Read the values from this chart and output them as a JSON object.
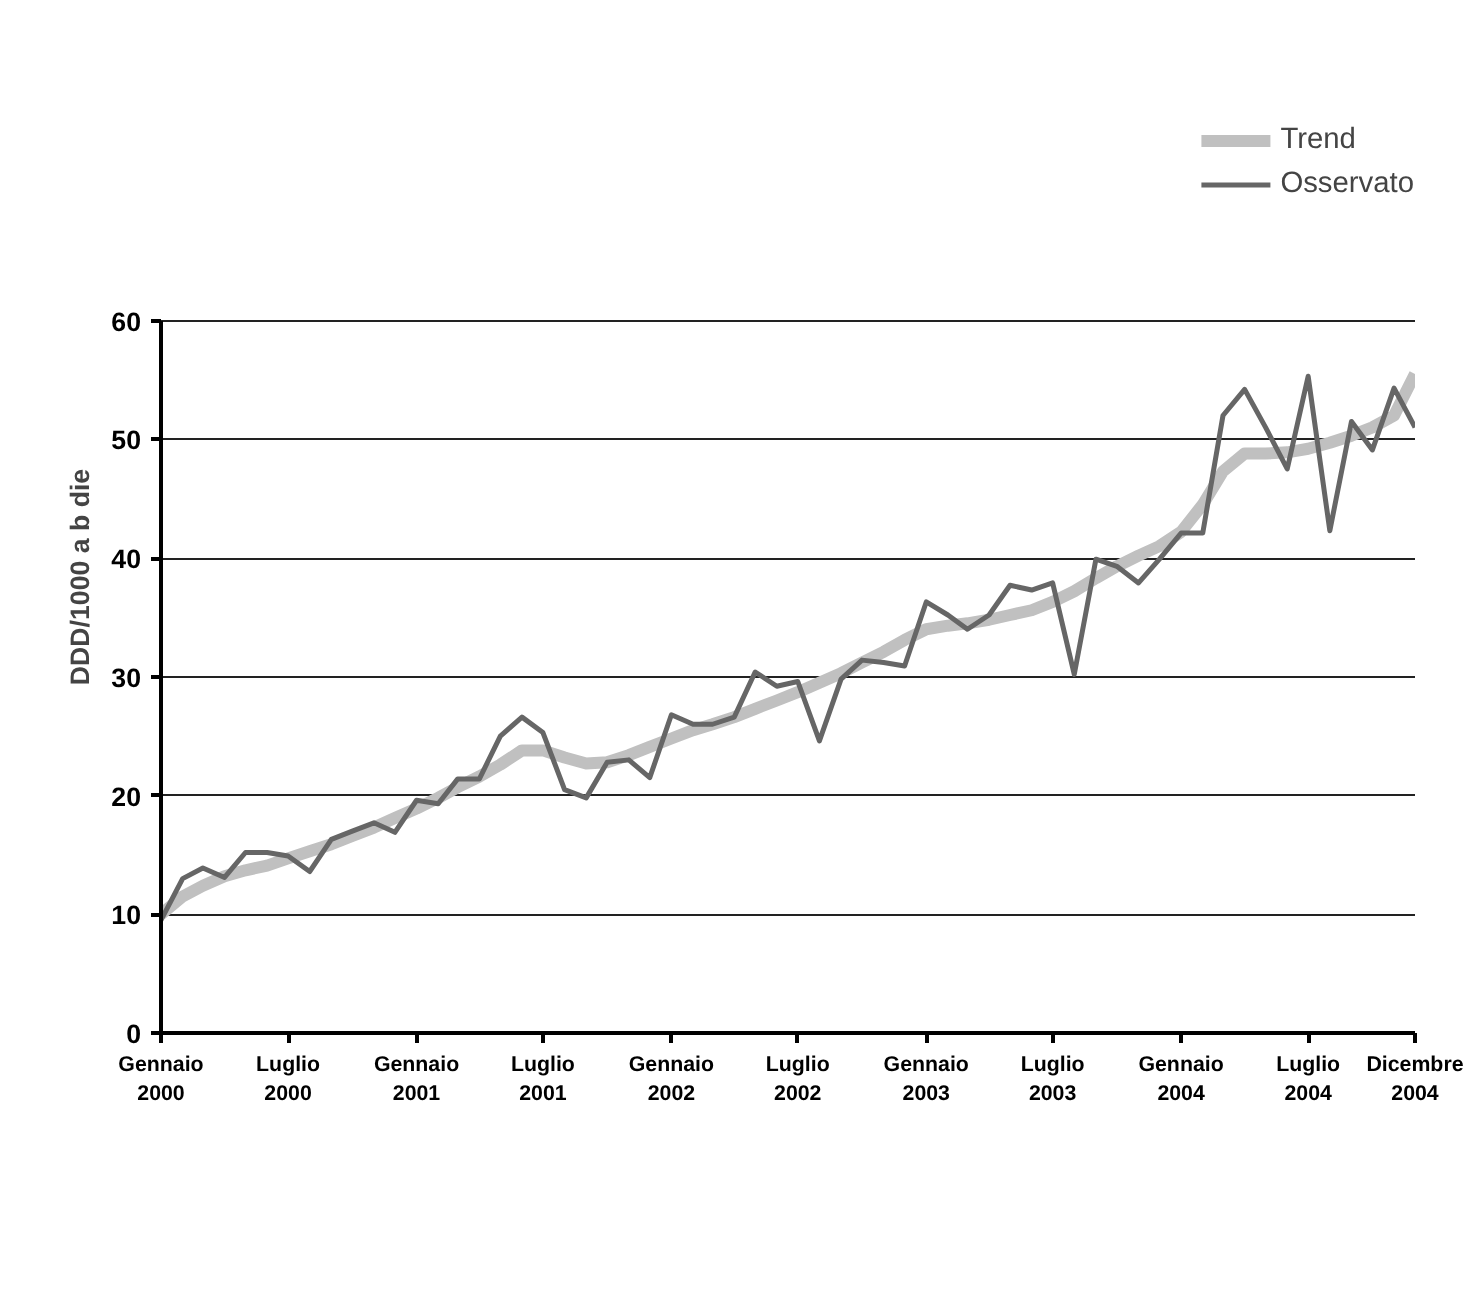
{
  "chart_data": {
    "type": "line",
    "ylabel": "DDD/1000 a b die",
    "x": [
      "2000-01",
      "2000-02",
      "2000-03",
      "2000-04",
      "2000-05",
      "2000-06",
      "2000-07",
      "2000-08",
      "2000-09",
      "2000-10",
      "2000-11",
      "2000-12",
      "2001-01",
      "2001-02",
      "2001-03",
      "2001-04",
      "2001-05",
      "2001-06",
      "2001-07",
      "2001-08",
      "2001-09",
      "2001-10",
      "2001-11",
      "2001-12",
      "2002-01",
      "2002-02",
      "2002-03",
      "2002-04",
      "2002-05",
      "2002-06",
      "2002-07",
      "2002-08",
      "2002-09",
      "2002-10",
      "2002-11",
      "2002-12",
      "2003-01",
      "2003-02",
      "2003-03",
      "2003-04",
      "2003-05",
      "2003-06",
      "2003-07",
      "2003-08",
      "2003-09",
      "2003-10",
      "2003-11",
      "2003-12",
      "2004-01",
      "2004-02",
      "2004-03",
      "2004-04",
      "2004-05",
      "2004-06",
      "2004-07",
      "2004-08",
      "2004-09",
      "2004-10",
      "2004-11",
      "2004-12"
    ],
    "series": [
      {
        "name": "Trend",
        "color": "#c0c0c0",
        "values": [
          10,
          11.5,
          12.4,
          13.2,
          13.7,
          14.1,
          14.7,
          15.3,
          15.9,
          16.6,
          17.3,
          18.1,
          18.9,
          19.8,
          20.7,
          21.6,
          22.6,
          23.8,
          23.8,
          23.2,
          22.7,
          22.8,
          23.4,
          24.1,
          24.8,
          25.5,
          26.0,
          26.6,
          27.3,
          28.0,
          28.7,
          29.5,
          30.3,
          31.2,
          32.1,
          33.1,
          34.0,
          34.3,
          34.5,
          34.8,
          35.2,
          35.6,
          36.3,
          37.2,
          38.3,
          39.3,
          40.2,
          41.0,
          42.2,
          44.5,
          47.3,
          48.8,
          48.8,
          48.9,
          49.2,
          49.7,
          50.3,
          51.0,
          52.0,
          55.5
        ]
      },
      {
        "name": "Osservato",
        "color": "#666666",
        "values": [
          9.5,
          13.0,
          13.9,
          13.1,
          15.2,
          15.2,
          14.9,
          13.6,
          16.3,
          17.0,
          17.7,
          16.9,
          19.6,
          19.3,
          21.4,
          21.4,
          25.0,
          26.6,
          25.3,
          20.5,
          19.8,
          22.8,
          23.0,
          21.5,
          26.8,
          26.0,
          26.0,
          26.6,
          30.4,
          29.2,
          29.6,
          24.6,
          29.8,
          31.4,
          31.2,
          30.9,
          36.3,
          35.2,
          34.0,
          35.2,
          37.7,
          37.3,
          37.9,
          30.2,
          39.9,
          39.3,
          37.9,
          39.9,
          42.1,
          42.1,
          52.0,
          54.2,
          51.0,
          47.5,
          55.3,
          42.3,
          51.5,
          49.1,
          54.3,
          51.0
        ]
      }
    ],
    "xticks": [
      {
        "value": "2000-01",
        "label": "Gennaio 2000"
      },
      {
        "value": "2000-07",
        "label": "Luglio 2000"
      },
      {
        "value": "2001-01",
        "label": "Gennaio 2001"
      },
      {
        "value": "2001-07",
        "label": "Luglio 2001"
      },
      {
        "value": "2002-01",
        "label": "Gennaio 2002"
      },
      {
        "value": "2002-07",
        "label": "Luglio 2002"
      },
      {
        "value": "2003-01",
        "label": "Gennaio 2003"
      },
      {
        "value": "2003-07",
        "label": "Luglio 2003"
      },
      {
        "value": "2004-01",
        "label": "Gennaio 2004"
      },
      {
        "value": "2004-07",
        "label": "Luglio 2004"
      },
      {
        "value": "2004-12",
        "label": "Dicembre 2004"
      }
    ],
    "xlim": [
      "2000-01",
      "2004-12"
    ],
    "ylim": [
      0,
      60
    ],
    "yticks": [
      0,
      10,
      20,
      30,
      40,
      50,
      60
    ],
    "grid": "y",
    "legend": "top right",
    "line_style": "solid",
    "marker": "none"
  }
}
